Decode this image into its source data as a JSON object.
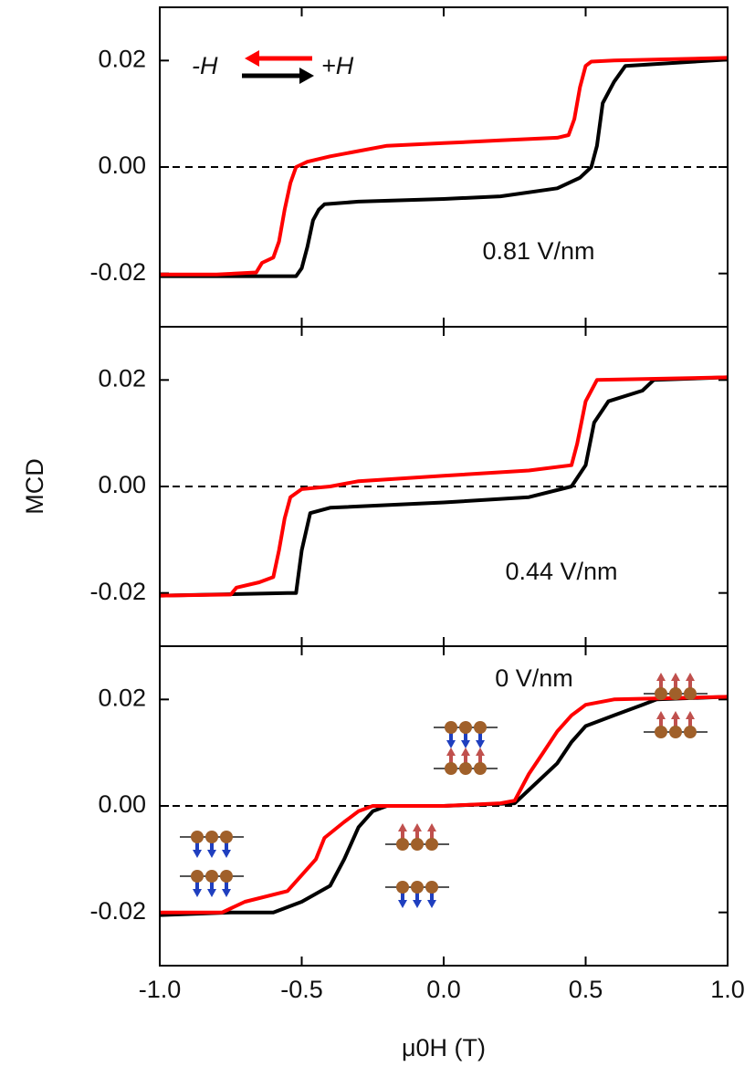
{
  "chart_data": [
    {
      "type": "line",
      "ylabel": "MCD",
      "annotation": "0.81 V/nm",
      "legend": "upper left",
      "xlim": [
        -1.0,
        1.0
      ],
      "ylim": [
        -0.03,
        0.03
      ],
      "yticks": [
        -0.02,
        {
          "value": 0,
          "label": "0.00"
        },
        0.02
      ],
      "series": [
        {
          "name": "-H",
          "color": "#ff0000",
          "x": [
            -1.0,
            -0.8,
            -0.66,
            -0.64,
            -0.6,
            -0.58,
            -0.56,
            -0.54,
            -0.52,
            -0.48,
            -0.4,
            -0.3,
            -0.2,
            0,
            0.2,
            0.4,
            0.44,
            0.46,
            0.48,
            0.5,
            0.52,
            0.6,
            1.0
          ],
          "values": [
            -0.0202,
            -0.0202,
            -0.0198,
            -0.018,
            -0.017,
            -0.014,
            -0.008,
            -0.003,
            0.0,
            0.001,
            0.002,
            0.003,
            0.004,
            0.0045,
            0.005,
            0.0055,
            0.006,
            0.009,
            0.015,
            0.019,
            0.0198,
            0.02,
            0.0205
          ]
        },
        {
          "name": "+H",
          "color": "#000000",
          "x": [
            -1.0,
            -0.52,
            -0.5,
            -0.48,
            -0.46,
            -0.44,
            -0.42,
            -0.3,
            0,
            0.2,
            0.4,
            0.48,
            0.52,
            0.54,
            0.56,
            0.6,
            0.64,
            1.0
          ],
          "values": [
            -0.0205,
            -0.0205,
            -0.019,
            -0.015,
            -0.01,
            -0.008,
            -0.007,
            -0.0065,
            -0.006,
            -0.0055,
            -0.004,
            -0.002,
            0.0,
            0.004,
            0.012,
            0.016,
            0.019,
            0.0202
          ]
        }
      ]
    },
    {
      "type": "line",
      "annotation": "0.44 V/nm",
      "xlim": [
        -1.0,
        1.0
      ],
      "ylim": [
        -0.03,
        0.03
      ],
      "yticks": [
        -0.02,
        {
          "value": 0,
          "label": "0.00"
        },
        0.02
      ],
      "series": [
        {
          "color": "#ff0000",
          "x": [
            -1.0,
            -0.75,
            -0.73,
            -0.65,
            -0.6,
            -0.58,
            -0.56,
            -0.54,
            -0.5,
            -0.4,
            -0.3,
            0,
            0.3,
            0.45,
            0.47,
            0.5,
            0.54,
            1.0
          ],
          "values": [
            -0.0205,
            -0.0203,
            -0.019,
            -0.018,
            -0.017,
            -0.012,
            -0.006,
            -0.002,
            -0.0005,
            0.0,
            0.001,
            0.002,
            0.003,
            0.004,
            0.008,
            0.016,
            0.02,
            0.0205
          ]
        },
        {
          "color": "#000000",
          "x": [
            -1.0,
            -0.55,
            -0.52,
            -0.5,
            -0.47,
            -0.4,
            0,
            0.3,
            0.45,
            0.5,
            0.53,
            0.58,
            0.7,
            0.74,
            1.0
          ],
          "values": [
            -0.0205,
            -0.02,
            -0.02,
            -0.012,
            -0.005,
            -0.004,
            -0.003,
            -0.002,
            0.0,
            0.004,
            0.012,
            0.016,
            0.018,
            0.02,
            0.0205
          ]
        }
      ]
    },
    {
      "type": "line",
      "annotation": "0 V/nm",
      "xlabel": "μ0H (T)",
      "xlim": [
        -1.0,
        1.0
      ],
      "ylim": [
        -0.03,
        0.03
      ],
      "xticks": [
        {
          "value": -1,
          "label": "-1.0"
        },
        -0.5,
        {
          "value": 0,
          "label": "0.0"
        },
        0.5,
        {
          "value": 1,
          "label": "1.0"
        }
      ],
      "yticks": [
        -0.02,
        {
          "value": 0,
          "label": "0.00"
        },
        0.02
      ],
      "series": [
        {
          "color": "#ff0000",
          "x": [
            -1.0,
            -0.78,
            -0.7,
            -0.55,
            -0.5,
            -0.45,
            -0.42,
            -0.35,
            -0.3,
            -0.25,
            0,
            0.2,
            0.25,
            0.3,
            0.35,
            0.4,
            0.45,
            0.5,
            0.6,
            1.0
          ],
          "values": [
            -0.02,
            -0.02,
            -0.018,
            -0.016,
            -0.013,
            -0.01,
            -0.006,
            -0.003,
            -0.001,
            0.0,
            0.0,
            0.0005,
            0.001,
            0.006,
            0.01,
            0.014,
            0.017,
            0.019,
            0.02,
            0.0205
          ]
        },
        {
          "color": "#000000",
          "x": [
            -1.0,
            -0.75,
            -0.6,
            -0.5,
            -0.4,
            -0.35,
            -0.3,
            -0.25,
            -0.2,
            0,
            0.25,
            0.3,
            0.4,
            0.45,
            0.5,
            0.6,
            0.7,
            0.75,
            1.0
          ],
          "values": [
            -0.0205,
            -0.02,
            -0.02,
            -0.018,
            -0.015,
            -0.01,
            -0.004,
            -0.001,
            0.0,
            0.0,
            0.0005,
            0.003,
            0.008,
            0.012,
            0.015,
            0.017,
            0.019,
            0.02,
            0.0205
          ]
        }
      ]
    }
  ]
}
